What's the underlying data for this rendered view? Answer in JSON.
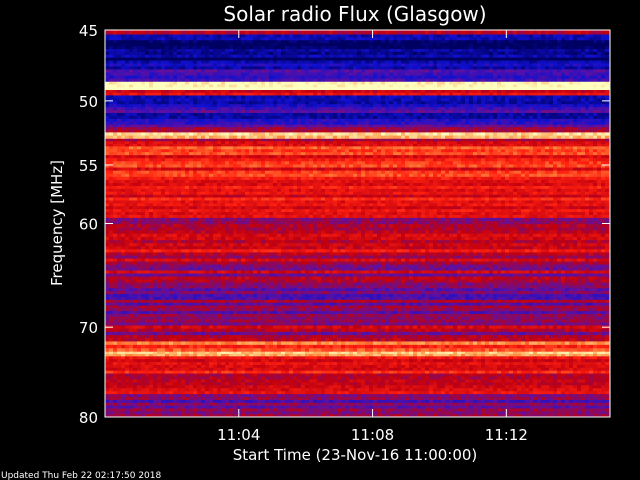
{
  "chart_data": {
    "type": "heatmap",
    "title": "Solar radio Flux (Glasgow)",
    "xlabel": "Start Time (23-Nov-16 11:00:00)",
    "ylabel": "Frequency [MHz]",
    "x_unit": "minutes after 11:00",
    "xlim": [
      0,
      15.1
    ],
    "ylim": [
      45,
      80
    ],
    "y_scale": "log",
    "x_ticks": [
      {
        "value": 4,
        "label": "11:04"
      },
      {
        "value": 8,
        "label": "11:08"
      },
      {
        "value": 12,
        "label": "11:12"
      }
    ],
    "y_ticks": [
      {
        "value": 45,
        "label": "45"
      },
      {
        "value": 50,
        "label": "50"
      },
      {
        "value": 55,
        "label": "55"
      },
      {
        "value": 60,
        "label": "60"
      },
      {
        "value": 70,
        "label": "70"
      },
      {
        "value": 80,
        "label": "80"
      }
    ],
    "colormap": [
      "#000060",
      "#1010d0",
      "#6010a0",
      "#c00010",
      "#ff2010",
      "#ff9040",
      "#ffffc0"
    ],
    "bands": [
      {
        "from": 45.0,
        "to": 45.3,
        "level": 0.45
      },
      {
        "from": 45.3,
        "to": 47.5,
        "level": 0.08
      },
      {
        "from": 47.5,
        "to": 48.6,
        "level": 0.2
      },
      {
        "from": 48.6,
        "to": 49.2,
        "level": 0.95
      },
      {
        "from": 49.2,
        "to": 49.6,
        "level": 0.5
      },
      {
        "from": 49.6,
        "to": 51.8,
        "level": 0.2
      },
      {
        "from": 51.8,
        "to": 52.4,
        "level": 0.35
      },
      {
        "from": 52.4,
        "to": 52.9,
        "level": 0.85
      },
      {
        "from": 52.9,
        "to": 53.5,
        "level": 0.55
      },
      {
        "from": 53.5,
        "to": 54.2,
        "level": 0.7
      },
      {
        "from": 54.2,
        "to": 56.5,
        "level": 0.62
      },
      {
        "from": 56.5,
        "to": 59.5,
        "level": 0.6
      },
      {
        "from": 59.5,
        "to": 61.5,
        "level": 0.5
      },
      {
        "from": 61.5,
        "to": 63.5,
        "level": 0.52
      },
      {
        "from": 63.5,
        "to": 65.5,
        "level": 0.45
      },
      {
        "from": 65.5,
        "to": 67.5,
        "level": 0.4
      },
      {
        "from": 67.5,
        "to": 69.5,
        "level": 0.42
      },
      {
        "from": 69.5,
        "to": 71.5,
        "level": 0.45
      },
      {
        "from": 71.5,
        "to": 72.6,
        "level": 0.7
      },
      {
        "from": 72.6,
        "to": 73.1,
        "level": 0.9
      },
      {
        "from": 73.1,
        "to": 75.0,
        "level": 0.55
      },
      {
        "from": 75.0,
        "to": 78.0,
        "level": 0.5
      },
      {
        "from": 78.0,
        "to": 80.0,
        "level": 0.4
      }
    ]
  },
  "footer": {
    "updated": "Updated Thu Feb 22 02:17:50 2018"
  }
}
